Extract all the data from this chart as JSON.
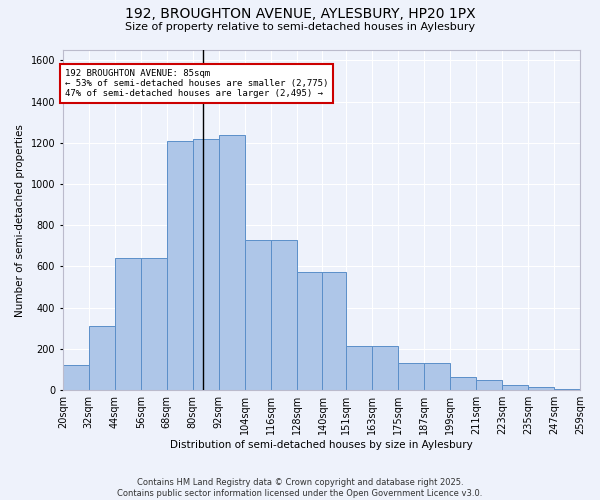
{
  "title1": "192, BROUGHTON AVENUE, AYLESBURY, HP20 1PX",
  "title2": "Size of property relative to semi-detached houses in Aylesbury",
  "xlabel": "Distribution of semi-detached houses by size in Aylesbury",
  "ylabel": "Number of semi-detached properties",
  "footer1": "Contains HM Land Registry data © Crown copyright and database right 2025.",
  "footer2": "Contains public sector information licensed under the Open Government Licence v3.0.",
  "annotation_line1": "192 BROUGHTON AVENUE: 85sqm",
  "annotation_line2": "← 53% of semi-detached houses are smaller (2,775)",
  "annotation_line3": "47% of semi-detached houses are larger (2,495) →",
  "property_size": 85,
  "bin_labels": [
    "20sqm",
    "32sqm",
    "44sqm",
    "56sqm",
    "68sqm",
    "80sqm",
    "92sqm",
    "104sqm",
    "116sqm",
    "128sqm",
    "140sqm",
    "151sqm",
    "163sqm",
    "175sqm",
    "187sqm",
    "199sqm",
    "211sqm",
    "223sqm",
    "235sqm",
    "247sqm",
    "259sqm"
  ],
  "bin_edges": [
    20,
    32,
    44,
    56,
    68,
    80,
    92,
    104,
    116,
    128,
    140,
    151,
    163,
    175,
    187,
    199,
    211,
    223,
    235,
    247,
    259
  ],
  "bar_heights": [
    120,
    310,
    640,
    640,
    1210,
    1220,
    1240,
    730,
    730,
    575,
    575,
    215,
    215,
    130,
    130,
    65,
    50,
    25,
    15,
    5,
    10
  ],
  "bar_color": "#aec6e8",
  "bar_edge_color": "#5b8fc9",
  "vline_x": 85,
  "vline_color": "#000000",
  "ylim": [
    0,
    1650
  ],
  "yticks": [
    0,
    200,
    400,
    600,
    800,
    1000,
    1200,
    1400,
    1600
  ],
  "background_color": "#eef2fb",
  "grid_color": "#ffffff",
  "annotation_box_color": "#ffffff",
  "annotation_box_edge": "#cc0000",
  "title_fontsize": 10,
  "subtitle_fontsize": 8,
  "footer_fontsize": 6,
  "ylabel_fontsize": 7.5,
  "xlabel_fontsize": 7.5,
  "tick_fontsize": 7
}
